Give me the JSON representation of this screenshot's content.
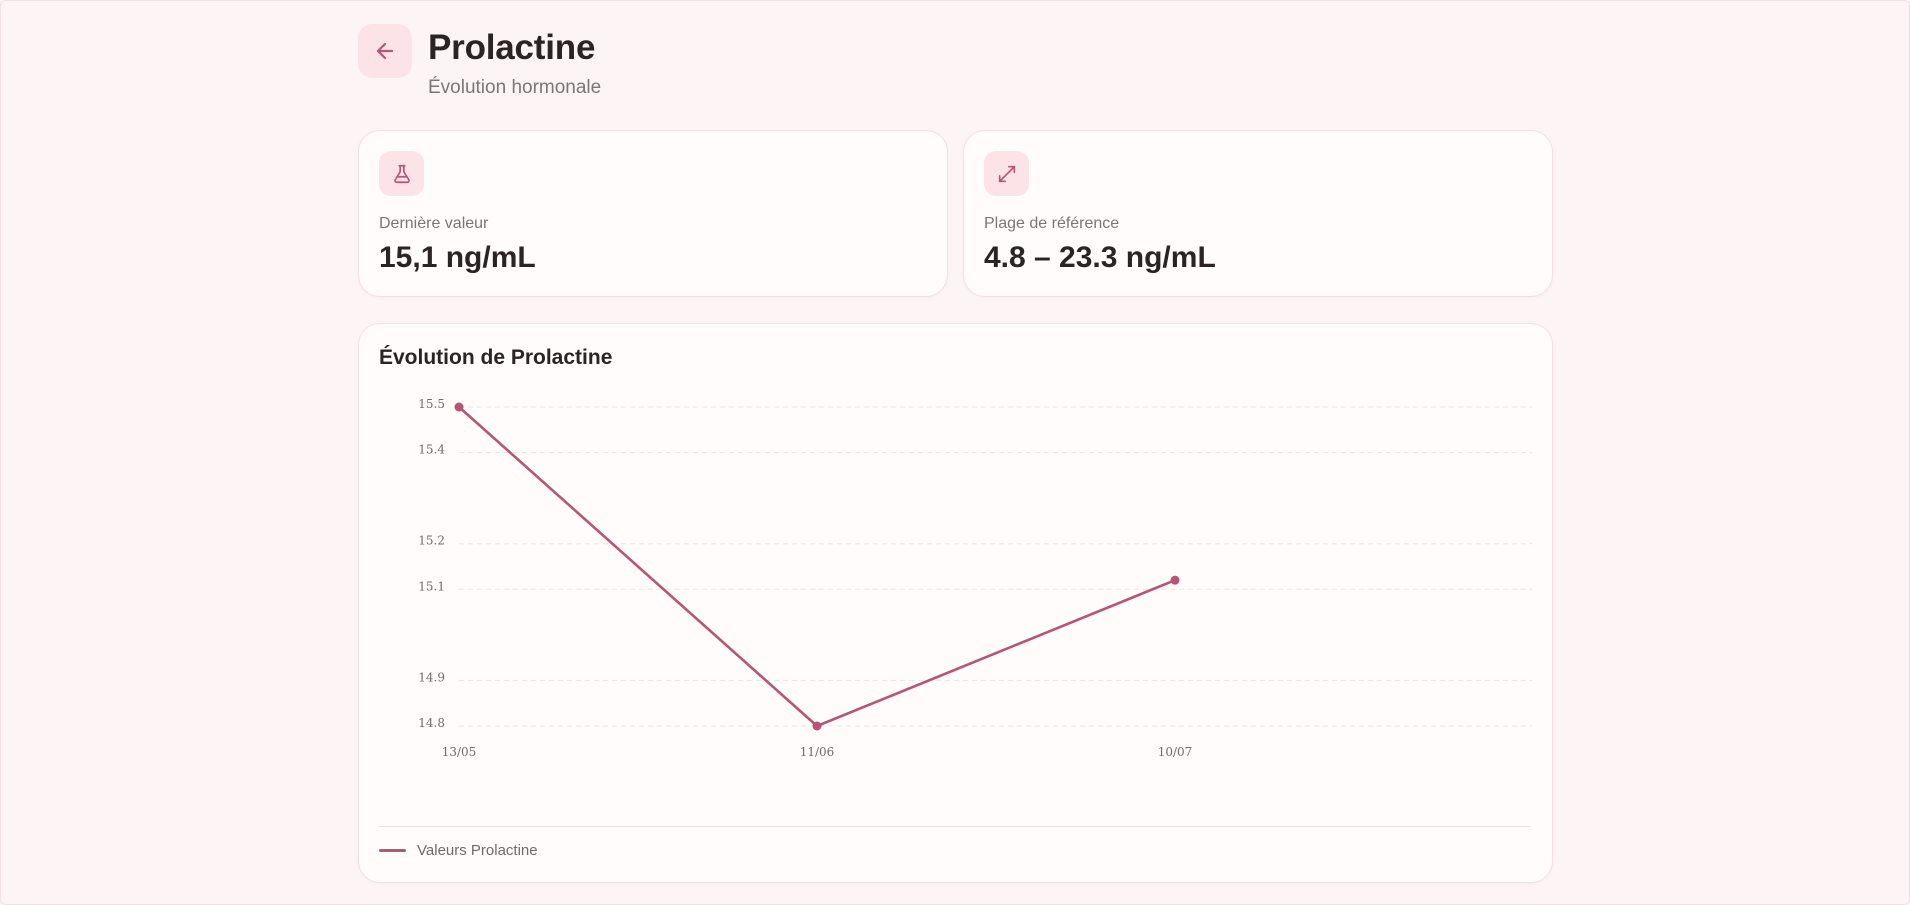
{
  "header": {
    "back_icon": "arrow-left-icon",
    "title": "Prolactine",
    "subtitle": "Évolution hormonale"
  },
  "stats": {
    "last_value": {
      "icon": "flask-icon",
      "label": "Dernière valeur",
      "value": "15,1 ng/mL"
    },
    "reference_range": {
      "icon": "expand-icon",
      "label": "Plage de référence",
      "value": "4.8 – 23.3 ng/mL"
    }
  },
  "chart": {
    "title": "Évolution de Prolactine"
  },
  "colors": {
    "accent": "#b75478",
    "icon_bg": "#fbe3e8",
    "background": "#fdf5f5",
    "grid": "#e7e3e5"
  },
  "chart_data": {
    "type": "line",
    "categories": [
      "13/05",
      "11/06",
      "10/07"
    ],
    "series": [
      {
        "name": "Valeurs Prolactine",
        "values": [
          15.5,
          14.8,
          15.12
        ]
      }
    ],
    "y_ticks": [
      "15.5",
      "15.4",
      "15.2",
      "15.1",
      "14.9",
      "14.8"
    ],
    "ylim": [
      14.8,
      15.5
    ],
    "grid": true,
    "legend_position": "bottom-left"
  }
}
